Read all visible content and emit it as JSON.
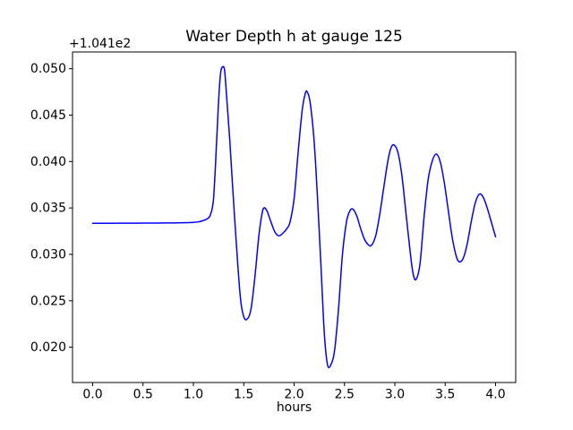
{
  "figure": {
    "background": "#ffffff"
  },
  "chart_data": {
    "type": "line",
    "title": "Water Depth h at gauge 125",
    "xlabel": "hours",
    "ylabel": "",
    "y_offset_label": "+1.041e2",
    "grid": false,
    "legend_position": "none",
    "axes_color": "#000000",
    "xlim": [
      -0.2,
      4.2
    ],
    "ylim": [
      0.0162,
      0.0518
    ],
    "x_ticks": [
      0.0,
      0.5,
      1.0,
      1.5,
      2.0,
      2.5,
      3.0,
      3.5,
      4.0
    ],
    "x_tick_labels": [
      "0.0",
      "0.5",
      "1.0",
      "1.5",
      "2.0",
      "2.5",
      "3.0",
      "3.5",
      "4.0"
    ],
    "y_ticks": [
      0.02,
      0.025,
      0.03,
      0.035,
      0.04,
      0.045,
      0.05
    ],
    "y_tick_labels": [
      "0.020",
      "0.025",
      "0.030",
      "0.035",
      "0.040",
      "0.045",
      "0.050"
    ],
    "series": [
      {
        "name": "water-depth-h",
        "color": "#0000ff",
        "line_width": 1.5,
        "x": [
          0.0,
          0.1,
          0.2,
          0.3,
          0.4,
          0.5,
          0.6,
          0.7,
          0.8,
          0.9,
          1.0,
          1.05,
          1.1,
          1.14,
          1.17,
          1.2,
          1.23,
          1.25,
          1.27,
          1.29,
          1.31,
          1.33,
          1.36,
          1.4,
          1.44,
          1.47,
          1.5,
          1.53,
          1.57,
          1.61,
          1.65,
          1.68,
          1.7,
          1.73,
          1.77,
          1.81,
          1.85,
          1.89,
          1.93,
          1.96,
          2.0,
          2.04,
          2.08,
          2.11,
          2.13,
          2.16,
          2.2,
          2.24,
          2.27,
          2.3,
          2.33,
          2.36,
          2.4,
          2.44,
          2.48,
          2.52,
          2.55,
          2.58,
          2.62,
          2.66,
          2.7,
          2.74,
          2.77,
          2.81,
          2.85,
          2.89,
          2.93,
          2.96,
          2.99,
          3.03,
          3.07,
          3.11,
          3.15,
          3.18,
          3.21,
          3.25,
          3.29,
          3.33,
          3.37,
          3.41,
          3.45,
          3.49,
          3.53,
          3.57,
          3.61,
          3.64,
          3.68,
          3.72,
          3.76,
          3.8,
          3.84,
          3.88,
          3.92,
          3.96,
          4.0
        ],
        "y": [
          0.03335,
          0.03335,
          0.03335,
          0.03336,
          0.03336,
          0.03337,
          0.03337,
          0.03338,
          0.03339,
          0.03341,
          0.03345,
          0.0335,
          0.03365,
          0.03385,
          0.0343,
          0.036,
          0.042,
          0.0465,
          0.0495,
          0.0502,
          0.0498,
          0.047,
          0.0425,
          0.0355,
          0.029,
          0.025,
          0.0233,
          0.023,
          0.024,
          0.0275,
          0.032,
          0.0343,
          0.035,
          0.0347,
          0.0335,
          0.0324,
          0.032,
          0.0323,
          0.0328,
          0.0335,
          0.036,
          0.041,
          0.0455,
          0.0473,
          0.0475,
          0.0463,
          0.042,
          0.0345,
          0.028,
          0.0215,
          0.0182,
          0.018,
          0.0195,
          0.024,
          0.03,
          0.0335,
          0.0346,
          0.0349,
          0.0342,
          0.0328,
          0.0316,
          0.031,
          0.031,
          0.032,
          0.0343,
          0.0372,
          0.04,
          0.0414,
          0.0418,
          0.041,
          0.0385,
          0.0345,
          0.0305,
          0.028,
          0.0273,
          0.029,
          0.034,
          0.038,
          0.04,
          0.0408,
          0.04,
          0.0378,
          0.0348,
          0.0318,
          0.0298,
          0.0292,
          0.0296,
          0.0312,
          0.0336,
          0.0356,
          0.0365,
          0.0361,
          0.0349,
          0.0334,
          0.0319
        ]
      }
    ]
  }
}
